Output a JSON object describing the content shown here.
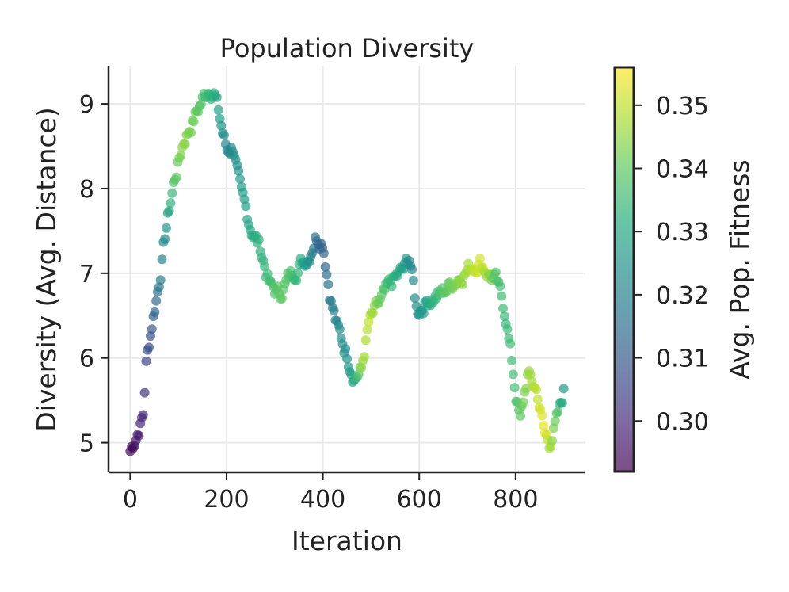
{
  "chart_data": {
    "type": "scatter",
    "title": "Population Diversity",
    "xlabel": "Iteration",
    "ylabel": "Diversity (Avg. Distance)",
    "xlim": [
      -45,
      945
    ],
    "ylim": [
      4.65,
      9.45
    ],
    "xticks": [
      0,
      200,
      400,
      600,
      800
    ],
    "xtick_labels": [
      "0",
      "200",
      "400",
      "600",
      "800"
    ],
    "yticks": [
      5,
      6,
      7,
      8,
      9
    ],
    "ytick_labels": [
      "5",
      "6",
      "7",
      "8",
      "9"
    ],
    "grid": true,
    "colormap": "viridis",
    "colorbar": {
      "label": "Avg. Pop. Fitness",
      "range": [
        0.292,
        0.356
      ],
      "ticks": [
        0.3,
        0.31,
        0.32,
        0.33,
        0.34,
        0.35
      ],
      "tick_labels": [
        "0.30",
        "0.31",
        "0.32",
        "0.33",
        "0.34",
        "0.35"
      ]
    },
    "marker_alpha": 0.7,
    "series_keypoints": {
      "name": "Population Diversity",
      "x": [
        0,
        10,
        20,
        28,
        32,
        45,
        60,
        75,
        90,
        110,
        130,
        150,
        165,
        175,
        185,
        200,
        215,
        230,
        250,
        270,
        290,
        310,
        330,
        350,
        370,
        385,
        400,
        415,
        430,
        450,
        465,
        480,
        495,
        520,
        545,
        570,
        580,
        595,
        620,
        645,
        670,
        700,
        725,
        745,
        760,
        780,
        800,
        810,
        825,
        845,
        860,
        870,
        885,
        895,
        900
      ],
      "y": [
        4.9,
        5.05,
        5.2,
        5.35,
        5.9,
        6.4,
        6.9,
        7.55,
        8.05,
        8.55,
        8.8,
        9.05,
        9.2,
        9.15,
        8.85,
        8.45,
        8.5,
        7.9,
        7.55,
        7.3,
        6.85,
        6.75,
        6.95,
        7.1,
        7.2,
        7.45,
        7.4,
        6.75,
        6.35,
        6.05,
        5.8,
        5.85,
        6.4,
        6.65,
        6.9,
        7.05,
        7.2,
        6.55,
        6.7,
        6.75,
        6.9,
        7.05,
        7.15,
        7.0,
        6.9,
        6.5,
        5.6,
        5.25,
        5.8,
        5.6,
        5.1,
        5.0,
        5.25,
        5.45,
        5.6
      ],
      "c": [
        0.293,
        0.295,
        0.298,
        0.3,
        0.305,
        0.31,
        0.318,
        0.325,
        0.338,
        0.345,
        0.342,
        0.338,
        0.334,
        0.332,
        0.328,
        0.321,
        0.323,
        0.327,
        0.33,
        0.333,
        0.336,
        0.34,
        0.338,
        0.333,
        0.325,
        0.315,
        0.312,
        0.318,
        0.322,
        0.325,
        0.33,
        0.345,
        0.35,
        0.34,
        0.333,
        0.328,
        0.322,
        0.323,
        0.33,
        0.338,
        0.342,
        0.347,
        0.352,
        0.345,
        0.338,
        0.335,
        0.337,
        0.34,
        0.345,
        0.35,
        0.354,
        0.348,
        0.34,
        0.332,
        0.327
      ]
    }
  }
}
